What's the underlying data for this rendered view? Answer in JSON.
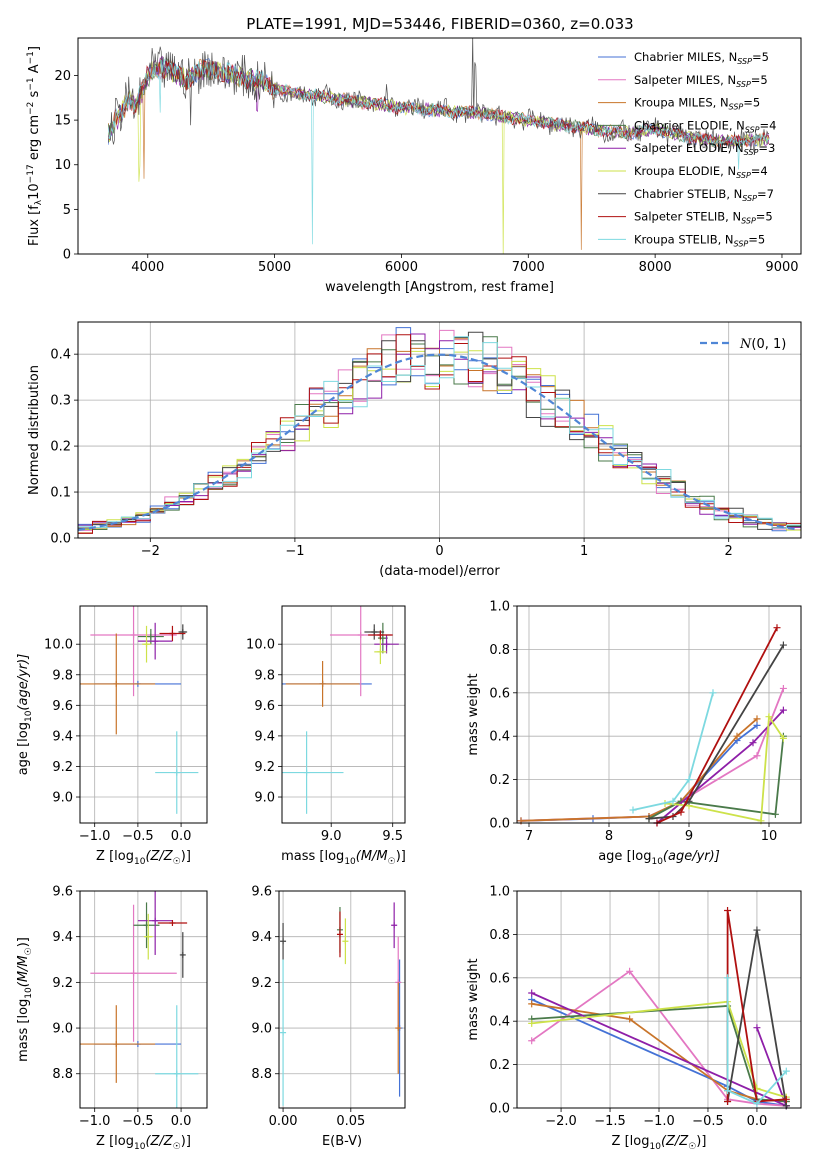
{
  "figure_title": "PLATE=1991, MJD=53446, FIBERID=0360, z=0.033",
  "colors": {
    "Chabrier MILES": "#4472d6",
    "Salpeter MILES": "#e377c2",
    "Kroupa MILES": "#c8742a",
    "Chabrier ELODIE": "#4a7a4a",
    "Salpeter ELODIE": "#8e1fa8",
    "Kroupa ELODIE": "#cde24a",
    "Chabrier STELIB": "#444444",
    "Salpeter STELIB": "#b01010",
    "Kroupa STELIB": "#7dd9e0",
    "normal": "#4f86d6"
  },
  "chart_data": [
    {
      "type": "line",
      "panel": "spectrum",
      "xlabel": "wavelength [Angstrom, rest frame]",
      "ylabel_parts": [
        "Flux [f",
        "λ",
        "10",
        "−17",
        " erg cm",
        "−2",
        " s",
        "−1",
        " A",
        "−1",
        "]"
      ],
      "xlim": [
        3450,
        9150
      ],
      "ylim": [
        0,
        24.2
      ],
      "xticks": [
        4000,
        5000,
        6000,
        7000,
        8000,
        9000
      ],
      "yticks": [
        0,
        5,
        10,
        15,
        20
      ],
      "legend_position": "top-right",
      "continuum": {
        "x": [
          3700,
          3750,
          3800,
          3850,
          3900,
          3950,
          4000,
          4100,
          4200,
          4300,
          4400,
          4500,
          4600,
          4700,
          4800,
          4900,
          5000,
          5200,
          5400,
          5600,
          5800,
          6000,
          6200,
          6400,
          6600,
          6800,
          7000,
          7200,
          7400,
          7600,
          7800,
          8000,
          8200,
          8400,
          8600,
          8800,
          8900
        ],
        "y": [
          13.5,
          15.0,
          16.0,
          17.5,
          16.5,
          18.0,
          20.0,
          21.0,
          20.5,
          19.5,
          20.5,
          20.8,
          20.3,
          20.0,
          19.6,
          19.3,
          18.5,
          18.0,
          17.6,
          17.2,
          16.8,
          16.4,
          16.2,
          16.0,
          15.8,
          15.4,
          15.0,
          14.6,
          14.2,
          13.8,
          13.5,
          14.0,
          13.3,
          12.8,
          12.6,
          12.8,
          12.9
        ]
      },
      "absorption_features": [
        {
          "x": 3935,
          "depth": 8,
          "series": "Kroupa ELODIE"
        },
        {
          "x": 3970,
          "depth": 10,
          "series": "Kroupa MILES"
        },
        {
          "x": 4100,
          "depth": 5,
          "series": "Kroupa STELIB"
        },
        {
          "x": 4340,
          "depth": 4,
          "series": "Chabrier STELIB"
        },
        {
          "x": 4861,
          "depth": 3,
          "series": "Salpeter ELODIE"
        },
        {
          "x": 5300,
          "depth": 17,
          "series": "Kroupa STELIB"
        },
        {
          "x": 6800,
          "depth": 16,
          "series": "Kroupa ELODIE"
        },
        {
          "x": 7420,
          "depth": 14,
          "series": "Kroupa MILES"
        },
        {
          "x": 8660,
          "depth": 3,
          "series": "Kroupa STELIB"
        }
      ],
      "emission_features": [
        {
          "x": 6563,
          "height": 9,
          "series": "Chabrier STELIB"
        },
        {
          "x": 6583,
          "height": 5,
          "series": "Chabrier STELIB"
        },
        {
          "x": 5880,
          "height": 3,
          "series": "Chabrier STELIB"
        }
      ],
      "series": [
        {
          "name": "Chabrier MILES",
          "nssp": "5"
        },
        {
          "name": "Salpeter MILES",
          "nssp": "5"
        },
        {
          "name": "Kroupa MILES",
          "nssp": "5"
        },
        {
          "name": "Chabrier ELODIE",
          "nssp": "4"
        },
        {
          "name": "Salpeter ELODIE",
          "nssp": "3"
        },
        {
          "name": "Kroupa ELODIE",
          "nssp": "4"
        },
        {
          "name": "Chabrier STELIB",
          "nssp": "7"
        },
        {
          "name": "Salpeter STELIB",
          "nssp": "5"
        },
        {
          "name": "Kroupa STELIB",
          "nssp": "5"
        }
      ]
    },
    {
      "type": "histogram",
      "panel": "residuals",
      "xlabel": "(data-model)/error",
      "ylabel": "Normed distribution",
      "xlim": [
        -2.5,
        2.5
      ],
      "ylim": [
        0,
        0.47
      ],
      "xticks": [
        -2,
        -1,
        0,
        1,
        2
      ],
      "yticks": [
        0.0,
        0.1,
        0.2,
        0.3,
        0.4
      ],
      "legend_label": "N(0,1)",
      "legend_position": "top-right",
      "bin_width": 0.1
    },
    {
      "type": "scatter",
      "panel": "age-vs-Z",
      "xlabel": "Z [log10(Z/Z☉)]",
      "ylabel": "age  [log10(age/yr)]",
      "xlim": [
        -1.17,
        0.3
      ],
      "ylim": [
        8.83,
        10.25
      ],
      "xticks": [
        -1.0,
        -0.5,
        0.0
      ],
      "yticks": [
        9.0,
        9.2,
        9.4,
        9.6,
        9.8,
        10.0
      ],
      "points": [
        {
          "series": "Chabrier MILES",
          "x": -0.5,
          "y": 9.74,
          "xerr": 0.5,
          "yerr": 0
        },
        {
          "series": "Salpeter MILES",
          "x": -0.55,
          "y": 10.06,
          "xerr": 0.5,
          "yerr": 0.4
        },
        {
          "series": "Kroupa MILES",
          "x": -0.75,
          "y": 9.74,
          "xerr": 0.45,
          "yerr": 0.33
        },
        {
          "series": "Chabrier ELODIE",
          "x": -0.35,
          "y": 10.05,
          "xerr": 0.15,
          "yerr": 0.05
        },
        {
          "series": "Salpeter ELODIE",
          "x": -0.3,
          "y": 10.02,
          "xerr": 0.2,
          "yerr": 0.12
        },
        {
          "series": "Kroupa ELODIE",
          "x": -0.4,
          "y": 10.0,
          "xerr": 0.05,
          "yerr": 0.12
        },
        {
          "series": "Chabrier STELIB",
          "x": 0.02,
          "y": 10.08,
          "xerr": 0.05,
          "yerr": 0.05
        },
        {
          "series": "Salpeter STELIB",
          "x": -0.1,
          "y": 10.07,
          "xerr": 0.15,
          "yerr": 0.05
        },
        {
          "series": "Kroupa STELIB",
          "x": -0.05,
          "y": 9.16,
          "xerr": 0.25,
          "yerr": 0.27
        }
      ]
    },
    {
      "type": "scatter",
      "panel": "age-vs-mass",
      "xlabel": "mass [log10(M/M☉)]",
      "ylabel": "",
      "xlim": [
        8.6,
        9.6
      ],
      "ylim": [
        8.83,
        10.25
      ],
      "xticks": [
        9.0,
        9.5
      ],
      "yticks": [
        9.0,
        9.2,
        9.4,
        9.6,
        9.8,
        10.0
      ],
      "points": [
        {
          "series": "Chabrier MILES",
          "x": 8.93,
          "y": 9.74,
          "xerr": 0.4,
          "yerr": 0
        },
        {
          "series": "Salpeter MILES",
          "x": 9.24,
          "y": 10.06,
          "xerr": 0.25,
          "yerr": 0.4
        },
        {
          "series": "Kroupa MILES",
          "x": 8.93,
          "y": 9.74,
          "xerr": 0.3,
          "yerr": 0.15
        },
        {
          "series": "Chabrier ELODIE",
          "x": 9.42,
          "y": 10.04,
          "xerr": 0.04,
          "yerr": 0.1
        },
        {
          "series": "Salpeter ELODIE",
          "x": 9.45,
          "y": 10.0,
          "xerr": 0.1,
          "yerr": 0.06
        },
        {
          "series": "Kroupa ELODIE",
          "x": 9.4,
          "y": 9.95,
          "xerr": 0.05,
          "yerr": 0.08
        },
        {
          "series": "Chabrier STELIB",
          "x": 9.35,
          "y": 10.08,
          "xerr": 0.08,
          "yerr": 0.05
        },
        {
          "series": "Salpeter STELIB",
          "x": 9.4,
          "y": 10.06,
          "xerr": 0.1,
          "yerr": 0.03
        },
        {
          "series": "Kroupa STELIB",
          "x": 8.8,
          "y": 9.16,
          "xerr": 0.3,
          "yerr": 0.27
        }
      ]
    },
    {
      "type": "line",
      "panel": "weight-vs-age",
      "xlabel": "age  [log10(age/yr)]",
      "ylabel": "mass weight",
      "xlim": [
        6.85,
        10.4
      ],
      "ylim": [
        0,
        1.0
      ],
      "xticks": [
        7,
        8,
        9,
        10
      ],
      "yticks": [
        0.0,
        0.2,
        0.4,
        0.6,
        0.8,
        1.0
      ],
      "series": [
        {
          "name": "Chabrier MILES",
          "x": [
            6.9,
            7.8,
            8.5,
            8.9,
            9.6,
            9.85
          ],
          "y": [
            0.01,
            0.02,
            0.03,
            0.1,
            0.38,
            0.45
          ]
        },
        {
          "name": "Salpeter MILES",
          "x": [
            6.9,
            8.5,
            8.9,
            9.85,
            10.18
          ],
          "y": [
            0.01,
            0.03,
            0.1,
            0.31,
            0.62
          ]
        },
        {
          "name": "Kroupa MILES",
          "x": [
            6.9,
            8.5,
            8.9,
            9.6,
            9.85
          ],
          "y": [
            0.01,
            0.03,
            0.1,
            0.4,
            0.48
          ]
        },
        {
          "name": "Chabrier ELODIE",
          "x": [
            8.5,
            8.9,
            10.08,
            10.18
          ],
          "y": [
            0.02,
            0.1,
            0.04,
            0.4
          ]
        },
        {
          "name": "Salpeter ELODIE",
          "x": [
            8.6,
            9.8,
            10.18
          ],
          "y": [
            0.0,
            0.37,
            0.52
          ]
        },
        {
          "name": "Kroupa ELODIE",
          "x": [
            8.7,
            9.0,
            9.9,
            10.0,
            10.18
          ],
          "y": [
            0.09,
            0.08,
            0.01,
            0.49,
            0.39
          ]
        },
        {
          "name": "Chabrier STELIB",
          "x": [
            8.5,
            8.8,
            9.0,
            10.18
          ],
          "y": [
            0.02,
            0.03,
            0.1,
            0.82
          ]
        },
        {
          "name": "Salpeter STELIB",
          "x": [
            8.6,
            8.9,
            10.1
          ],
          "y": [
            0.0,
            0.05,
            0.9
          ]
        },
        {
          "name": "Kroupa STELIB",
          "x": [
            8.3,
            8.8,
            9.0,
            9.3
          ],
          "y": [
            0.06,
            0.1,
            0.2,
            0.6
          ]
        }
      ]
    },
    {
      "type": "scatter",
      "panel": "mass-vs-Z",
      "xlabel": "Z [log10(Z/Z☉)]",
      "ylabel": "mass [log10(M/M☉)]",
      "xlim": [
        -1.17,
        0.3
      ],
      "ylim": [
        8.65,
        9.6
      ],
      "xticks": [
        -1.0,
        -0.5,
        0.0
      ],
      "yticks": [
        8.8,
        9.0,
        9.2,
        9.4,
        9.6
      ],
      "points": [
        {
          "series": "Chabrier MILES",
          "x": -0.5,
          "y": 8.93,
          "xerr": 0.5,
          "yerr": 0.0
        },
        {
          "series": "Salpeter MILES",
          "x": -0.55,
          "y": 9.24,
          "xerr": 0.5,
          "yerr": 0.3
        },
        {
          "series": "Kroupa MILES",
          "x": -0.75,
          "y": 8.93,
          "xerr": 0.45,
          "yerr": 0.17
        },
        {
          "series": "Chabrier ELODIE",
          "x": -0.4,
          "y": 9.45,
          "xerr": 0.15,
          "yerr": 0.1
        },
        {
          "series": "Salpeter ELODIE",
          "x": -0.3,
          "y": 9.47,
          "xerr": 0.2,
          "yerr": 0.15
        },
        {
          "series": "Kroupa ELODIE",
          "x": -0.38,
          "y": 9.4,
          "xerr": 0.05,
          "yerr": 0.1
        },
        {
          "series": "Chabrier STELIB",
          "x": 0.02,
          "y": 9.32,
          "xerr": 0.02,
          "yerr": 0.1
        },
        {
          "series": "Salpeter STELIB",
          "x": -0.1,
          "y": 9.46,
          "xerr": 0.17,
          "yerr": 0.0
        },
        {
          "series": "Kroupa STELIB",
          "x": -0.05,
          "y": 8.8,
          "xerr": 0.25,
          "yerr": 0.3
        }
      ]
    },
    {
      "type": "scatter",
      "panel": "mass-vs-EBV",
      "xlabel": "E(B-V)",
      "ylabel": "",
      "xlim": [
        -0.003,
        0.09
      ],
      "ylim": [
        8.65,
        9.6
      ],
      "xticks": [
        0.0,
        0.05
      ],
      "yticks": [
        8.8,
        9.0,
        9.2,
        9.4,
        9.6
      ],
      "points": [
        {
          "series": "Chabrier MILES",
          "x": 0.086,
          "y": 9.0,
          "xerr": 0,
          "yerr": 0.3
        },
        {
          "series": "Salpeter MILES",
          "x": 0.085,
          "y": 9.2,
          "xerr": 0,
          "yerr": 0.2
        },
        {
          "series": "Kroupa MILES",
          "x": 0.085,
          "y": 9.0,
          "xerr": 0,
          "yerr": 0.2
        },
        {
          "series": "Chabrier ELODIE",
          "x": 0.042,
          "y": 9.43,
          "xerr": 0,
          "yerr": 0.1
        },
        {
          "series": "Salpeter ELODIE",
          "x": 0.082,
          "y": 9.45,
          "xerr": 0,
          "yerr": 0.1
        },
        {
          "series": "Kroupa ELODIE",
          "x": 0.046,
          "y": 9.38,
          "xerr": 0,
          "yerr": 0.1
        },
        {
          "series": "Chabrier STELIB",
          "x": 0.0,
          "y": 9.38,
          "xerr": 0,
          "yerr": 0.08
        },
        {
          "series": "Salpeter STELIB",
          "x": 0.042,
          "y": 9.41,
          "xerr": 0,
          "yerr": 0.1
        },
        {
          "series": "Kroupa STELIB",
          "x": 0.0,
          "y": 8.98,
          "xerr": 0,
          "yerr": 0.32
        }
      ]
    },
    {
      "type": "line",
      "panel": "weight-vs-Z",
      "xlabel": "Z [log10(Z/Z☉)]",
      "ylabel": "mass weight",
      "xlim": [
        -2.45,
        0.45
      ],
      "ylim": [
        0,
        1.0
      ],
      "xticks": [
        -2.0,
        -1.5,
        -1.0,
        -0.5,
        0.0
      ],
      "yticks": [
        0.0,
        0.2,
        0.4,
        0.6,
        0.8,
        1.0
      ],
      "series": [
        {
          "name": "Chabrier MILES",
          "x": [
            -2.3,
            -0.3,
            0.0,
            0.3
          ],
          "y": [
            0.5,
            0.1,
            0.03,
            0.01
          ]
        },
        {
          "name": "Salpeter MILES",
          "x": [
            -2.3,
            -1.3,
            -0.3,
            0.0,
            0.3
          ],
          "y": [
            0.31,
            0.63,
            0.04,
            0.02,
            0.01
          ]
        },
        {
          "name": "Kroupa MILES",
          "x": [
            -2.3,
            -1.3,
            -0.3,
            0.0,
            0.3
          ],
          "y": [
            0.48,
            0.41,
            0.08,
            0.04,
            0.03
          ]
        },
        {
          "name": "Chabrier ELODIE",
          "x": [
            -2.3,
            -0.3,
            0.0,
            0.3
          ],
          "y": [
            0.41,
            0.47,
            0.04,
            0.03
          ]
        },
        {
          "name": "Salpeter ELODIE",
          "x": [
            -2.3,
            0.3,
            0.0
          ],
          "y": [
            0.53,
            0.01,
            0.37
          ]
        },
        {
          "name": "Kroupa ELODIE",
          "x": [
            -2.3,
            -0.3,
            0.0,
            0.3
          ],
          "y": [
            0.39,
            0.49,
            0.09,
            0.05
          ]
        },
        {
          "name": "Chabrier STELIB",
          "x": [
            -0.3,
            0.0,
            0.3
          ],
          "y": [
            0.03,
            0.82,
            0.01
          ]
        },
        {
          "name": "Salpeter STELIB",
          "x": [
            -0.3,
            -0.3,
            0.0,
            0.3
          ],
          "y": [
            0.03,
            0.91,
            0.03,
            0.04
          ]
        },
        {
          "name": "Kroupa STELIB",
          "x": [
            -0.3,
            -0.3,
            0.0,
            0.3
          ],
          "y": [
            0.6,
            0.08,
            0.02,
            0.17
          ]
        }
      ]
    }
  ]
}
